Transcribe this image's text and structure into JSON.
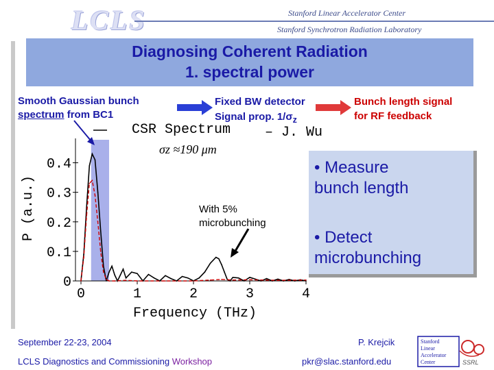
{
  "header": {
    "logo_text": "LCLS",
    "org_line1": "Stanford Linear Accelerator Center",
    "org_line2": "Stanford Synchrotron Radiation Laboratory"
  },
  "title": {
    "line1": "Diagnosing Coherent Radiation",
    "line2": "1. spectral power"
  },
  "notes": {
    "left_line1": "Smooth Gaussian bunch",
    "left_line2_u": "spectrum",
    "left_line2_rest": " from  BC1",
    "mid_line1": "Fixed BW detector",
    "mid_line2_prefix": "Signal prop. 1/",
    "mid_line2_sigma": "σ",
    "mid_line2_sub": "z",
    "right_line1": "Bunch length signal",
    "right_line2": "for RF feedback"
  },
  "callout": {
    "line1": "• Measure",
    "line2": "bunch length",
    "line3": "• Detect",
    "line4": "microbunching"
  },
  "annotation": {
    "line1": "With 5%",
    "line2": "microbunching"
  },
  "footer": {
    "date": "September 22-23, 2004",
    "conference_main": "LCLS Diagnostics and Commissioning ",
    "conference_ws": "Workshop",
    "author": "P. Krejcik",
    "email": "pkr@slac.stanford.edu",
    "logo_lines": [
      "Stanford",
      "Linear",
      "Accelerator",
      "Center"
    ],
    "logo_tag": "SSRL"
  },
  "colors": {
    "title_bg": "#8fa8de",
    "title_text": "#1a1aa6",
    "red": "#cc0000",
    "shade": "#9aa2e6"
  },
  "chart_data": {
    "type": "line",
    "title": "CSR Spectrum",
    "title_suffix": "– J. Wu",
    "sigma_label": "σz ≈190 μm",
    "xlabel": "Frequency (THz)",
    "ylabel": "P (a.u.)",
    "xlim": [
      0,
      4
    ],
    "ylim": [
      0,
      0.45
    ],
    "xticks": [
      "0",
      "1",
      "2",
      "3",
      "4"
    ],
    "yticks": [
      "0",
      "0.1",
      "0.2",
      "0.3",
      "0.4"
    ],
    "shaded_band": [
      0.18,
      0.5
    ],
    "series": [
      {
        "color": "#000000",
        "style": "solid",
        "x": [
          0,
          0.05,
          0.1,
          0.15,
          0.2,
          0.25,
          0.3,
          0.35,
          0.4,
          0.45,
          0.5,
          0.55,
          0.6,
          0.65,
          0.7,
          0.75,
          0.8,
          0.9,
          1.0,
          1.1,
          1.2,
          1.3,
          1.4,
          1.5,
          1.6,
          1.7,
          1.8,
          1.9,
          2.0,
          2.1,
          2.2,
          2.3,
          2.4,
          2.45,
          2.5,
          2.55,
          2.6,
          2.65,
          2.7,
          2.8,
          2.9,
          3.0,
          3.1,
          3.2,
          3.3,
          3.4,
          3.5,
          3.6,
          3.7,
          3.8,
          3.9,
          4.0
        ],
        "y": [
          0.0,
          0.09,
          0.25,
          0.39,
          0.43,
          0.41,
          0.3,
          0.17,
          0.05,
          0.0,
          0.03,
          0.05,
          0.02,
          0.0,
          0.02,
          0.04,
          0.01,
          0.03,
          0.025,
          0.0,
          0.022,
          0.01,
          0.0,
          0.018,
          0.008,
          0.0,
          0.015,
          0.01,
          0.0,
          0.01,
          0.03,
          0.06,
          0.08,
          0.075,
          0.055,
          0.03,
          0.005,
          0.0,
          0.012,
          0.01,
          0.0,
          0.012,
          0.006,
          0.0,
          0.008,
          0.0,
          0.006,
          0.0,
          0.005,
          0.0,
          0.004,
          0.0
        ]
      },
      {
        "color": "#cc0000",
        "style": "dashed",
        "x": [
          0,
          0.05,
          0.1,
          0.15,
          0.2,
          0.25,
          0.3,
          0.35,
          0.4,
          0.45,
          0.5,
          0.6,
          0.8,
          1.0,
          1.5,
          2.0,
          2.3,
          2.5,
          2.7,
          3.0,
          3.5,
          4.0
        ],
        "y": [
          0.0,
          0.08,
          0.22,
          0.33,
          0.34,
          0.29,
          0.2,
          0.1,
          0.03,
          0.005,
          0.0,
          0.0,
          0.002,
          0.0,
          0.0,
          0.0,
          0.003,
          0.005,
          0.003,
          0.004,
          0.002,
          0.003
        ]
      }
    ]
  }
}
